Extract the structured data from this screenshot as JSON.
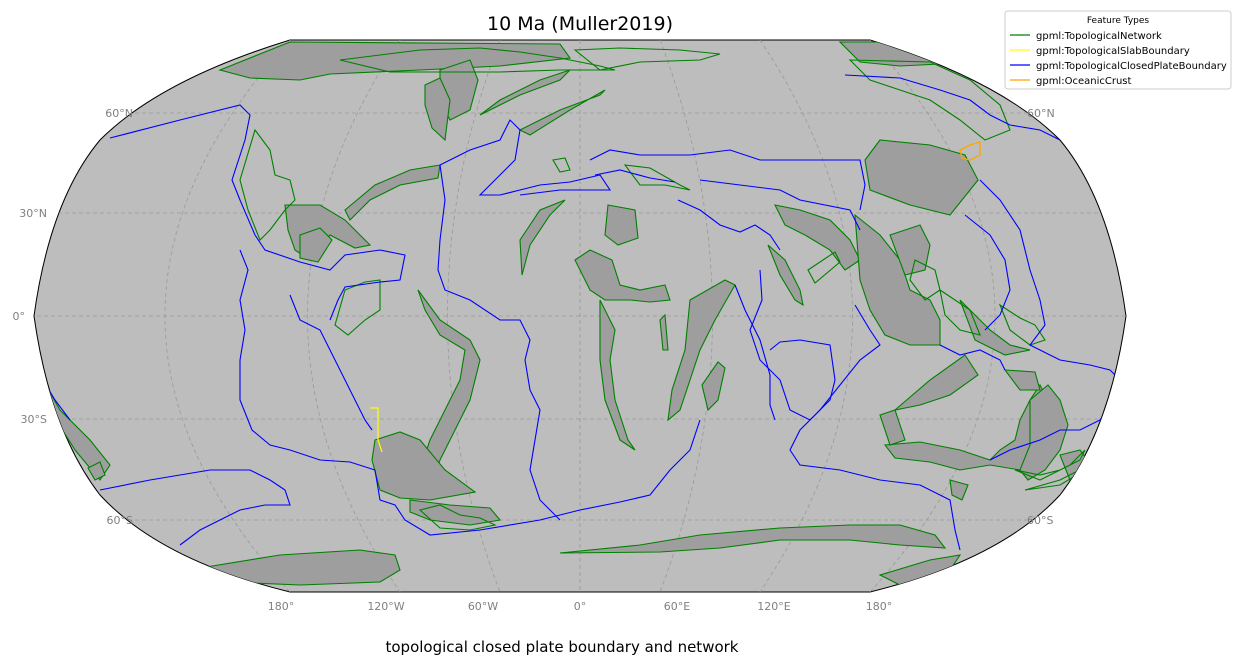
{
  "title": "10 Ma (Muller2019)",
  "caption": "topological closed plate boundary and network",
  "colors": {
    "ocean": "#bdbdbd",
    "land": "#9e9e9e",
    "network": "#008000",
    "slab": "#ffff00",
    "closed_boundary": "#0000ff",
    "oceanic_crust": "#ffa500",
    "grid": "#999999",
    "axis_text": "#808080"
  },
  "axes": {
    "lat_labels": [
      "60°N",
      "30°N",
      "0°",
      "30°S",
      "60°S"
    ],
    "lon_labels": [
      "180°",
      "120°W",
      "60°W",
      "0°",
      "60°E",
      "120°E",
      "180°"
    ]
  },
  "legend": {
    "title": "Feature Types",
    "position": "top-right",
    "items": [
      {
        "label": "gpml:TopologicalNetwork",
        "color": "#008000"
      },
      {
        "label": "gpml:TopologicalSlabBoundary",
        "color": "#ffff00"
      },
      {
        "label": "gpml:TopologicalClosedPlateBoundary",
        "color": "#0000ff"
      },
      {
        "label": "gpml:OceanicCrust",
        "color": "#ffa500"
      }
    ]
  }
}
